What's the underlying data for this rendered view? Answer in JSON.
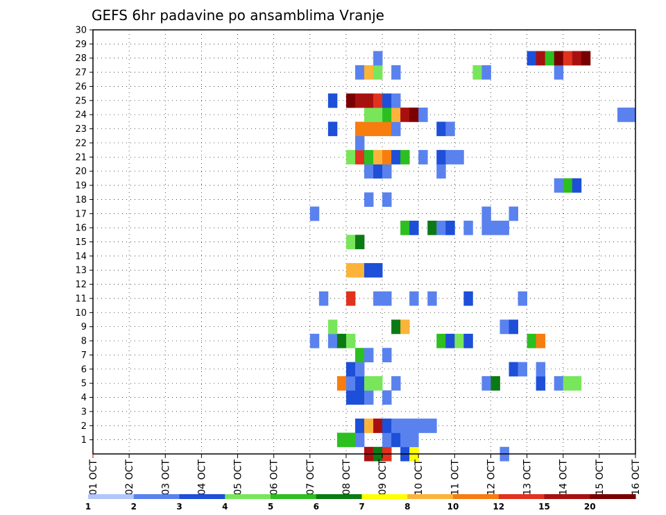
{
  "chart_data": {
    "type": "heatmap",
    "title": "GEFS 6hr padavine po ansamblima Vranje",
    "xlabel": "",
    "ylabel": "",
    "x_ticks": [
      "01 OCT",
      "02 OCT",
      "03 OCT",
      "04 OCT",
      "05 OCT",
      "06 OCT",
      "07 OCT",
      "08 OCT",
      "09 OCT",
      "10 OCT",
      "11 OCT",
      "12 OCT",
      "13 OCT",
      "14 OCT",
      "15 OCT",
      "16 OCT"
    ],
    "y_ticks": [
      1,
      2,
      3,
      4,
      5,
      6,
      7,
      8,
      9,
      10,
      11,
      12,
      13,
      14,
      15,
      16,
      17,
      18,
      19,
      20,
      21,
      22,
      23,
      24,
      25,
      26,
      27,
      28,
      29,
      30
    ],
    "xlim_days": [
      1,
      16
    ],
    "ylim": [
      0,
      30
    ],
    "grid": true,
    "step_hours": 6,
    "legend_levels": [
      1,
      2,
      3,
      4,
      5,
      6,
      7,
      8,
      10,
      12,
      15,
      20
    ],
    "legend_colors": [
      "#b3c6fa",
      "#5a82ee",
      "#1d4fd8",
      "#78e65a",
      "#2dbf1f",
      "#0c7a14",
      "#ffff00",
      "#fcb33a",
      "#f77d0f",
      "#e0321e",
      "#a81010",
      "#7a0000"
    ],
    "legend_placement": "bottom",
    "cells": [
      {
        "member": 0,
        "start": 8.5,
        "cls": 10
      },
      {
        "member": 0,
        "start": 8.75,
        "cls": 5
      },
      {
        "member": 0,
        "start": 9.0,
        "cls": 9
      },
      {
        "member": 0,
        "start": 9.5,
        "cls": 2
      },
      {
        "member": 0,
        "start": 9.75,
        "cls": 6
      },
      {
        "member": 0,
        "start": 12.25,
        "cls": 1
      },
      {
        "member": 1,
        "start": 7.75,
        "cls": 4
      },
      {
        "member": 1,
        "start": 8.0,
        "cls": 4
      },
      {
        "member": 1,
        "start": 8.25,
        "cls": 1
      },
      {
        "member": 1,
        "start": 9.0,
        "cls": 1
      },
      {
        "member": 1,
        "start": 9.25,
        "cls": 2
      },
      {
        "member": 1,
        "start": 9.5,
        "cls": 1
      },
      {
        "member": 1,
        "start": 9.75,
        "cls": 1
      },
      {
        "member": 2,
        "start": 8.25,
        "cls": 2
      },
      {
        "member": 2,
        "start": 8.5,
        "cls": 7
      },
      {
        "member": 2,
        "start": 8.75,
        "cls": 10
      },
      {
        "member": 2,
        "start": 9.0,
        "cls": 2
      },
      {
        "member": 2,
        "start": 9.25,
        "cls": 1
      },
      {
        "member": 2,
        "start": 9.5,
        "cls": 1
      },
      {
        "member": 2,
        "start": 9.75,
        "cls": 1
      },
      {
        "member": 2,
        "start": 10.0,
        "cls": 1
      },
      {
        "member": 2,
        "start": 10.25,
        "cls": 1
      },
      {
        "member": 4,
        "start": 8.0,
        "cls": 2
      },
      {
        "member": 4,
        "start": 8.25,
        "cls": 2
      },
      {
        "member": 4,
        "start": 8.5,
        "cls": 1
      },
      {
        "member": 4,
        "start": 9.0,
        "cls": 1
      },
      {
        "member": 5,
        "start": 7.75,
        "cls": 8
      },
      {
        "member": 5,
        "start": 8.0,
        "cls": 1
      },
      {
        "member": 5,
        "start": 8.25,
        "cls": 2
      },
      {
        "member": 5,
        "start": 8.5,
        "cls": 3
      },
      {
        "member": 5,
        "start": 8.75,
        "cls": 3
      },
      {
        "member": 5,
        "start": 9.25,
        "cls": 1
      },
      {
        "member": 5,
        "start": 11.75,
        "cls": 1
      },
      {
        "member": 5,
        "start": 12.0,
        "cls": 5
      },
      {
        "member": 5,
        "start": 13.25,
        "cls": 2
      },
      {
        "member": 5,
        "start": 13.75,
        "cls": 1
      },
      {
        "member": 5,
        "start": 14.0,
        "cls": 3
      },
      {
        "member": 5,
        "start": 14.25,
        "cls": 3
      },
      {
        "member": 6,
        "start": 8.0,
        "cls": 2
      },
      {
        "member": 6,
        "start": 8.25,
        "cls": 1
      },
      {
        "member": 6,
        "start": 12.5,
        "cls": 2
      },
      {
        "member": 6,
        "start": 12.75,
        "cls": 1
      },
      {
        "member": 6,
        "start": 13.25,
        "cls": 1
      },
      {
        "member": 7,
        "start": 8.25,
        "cls": 4
      },
      {
        "member": 7,
        "start": 8.5,
        "cls": 1
      },
      {
        "member": 7,
        "start": 9.0,
        "cls": 1
      },
      {
        "member": 8,
        "start": 7.0,
        "cls": 1
      },
      {
        "member": 8,
        "start": 7.5,
        "cls": 1
      },
      {
        "member": 8,
        "start": 7.75,
        "cls": 5
      },
      {
        "member": 8,
        "start": 8.0,
        "cls": 3
      },
      {
        "member": 8,
        "start": 10.5,
        "cls": 4
      },
      {
        "member": 8,
        "start": 10.75,
        "cls": 2
      },
      {
        "member": 8,
        "start": 11.0,
        "cls": 3
      },
      {
        "member": 8,
        "start": 11.25,
        "cls": 2
      },
      {
        "member": 8,
        "start": 13.0,
        "cls": 4
      },
      {
        "member": 8,
        "start": 13.25,
        "cls": 8
      },
      {
        "member": 9,
        "start": 7.5,
        "cls": 3
      },
      {
        "member": 9,
        "start": 9.25,
        "cls": 5
      },
      {
        "member": 9,
        "start": 9.5,
        "cls": 7
      },
      {
        "member": 9,
        "start": 12.25,
        "cls": 1
      },
      {
        "member": 9,
        "start": 12.5,
        "cls": 2
      },
      {
        "member": 11,
        "start": 7.25,
        "cls": 1
      },
      {
        "member": 11,
        "start": 8.0,
        "cls": 9
      },
      {
        "member": 11,
        "start": 8.75,
        "cls": 1
      },
      {
        "member": 11,
        "start": 9.0,
        "cls": 1
      },
      {
        "member": 11,
        "start": 9.75,
        "cls": 1
      },
      {
        "member": 11,
        "start": 10.25,
        "cls": 1
      },
      {
        "member": 11,
        "start": 11.25,
        "cls": 2
      },
      {
        "member": 11,
        "start": 12.75,
        "cls": 1
      },
      {
        "member": 13,
        "start": 8.0,
        "cls": 7
      },
      {
        "member": 13,
        "start": 8.25,
        "cls": 7
      },
      {
        "member": 13,
        "start": 8.5,
        "cls": 2
      },
      {
        "member": 13,
        "start": 8.75,
        "cls": 2
      },
      {
        "member": 15,
        "start": 8.0,
        "cls": 3
      },
      {
        "member": 15,
        "start": 8.25,
        "cls": 5
      },
      {
        "member": 16,
        "start": 9.5,
        "cls": 4
      },
      {
        "member": 16,
        "start": 9.75,
        "cls": 2
      },
      {
        "member": 16,
        "start": 10.25,
        "cls": 5
      },
      {
        "member": 16,
        "start": 10.5,
        "cls": 1
      },
      {
        "member": 16,
        "start": 10.75,
        "cls": 2
      },
      {
        "member": 16,
        "start": 11.25,
        "cls": 1
      },
      {
        "member": 16,
        "start": 11.75,
        "cls": 1
      },
      {
        "member": 16,
        "start": 12.0,
        "cls": 1
      },
      {
        "member": 16,
        "start": 12.25,
        "cls": 1
      },
      {
        "member": 17,
        "start": 7.0,
        "cls": 1
      },
      {
        "member": 17,
        "start": 11.75,
        "cls": 1
      },
      {
        "member": 17,
        "start": 12.5,
        "cls": 1
      },
      {
        "member": 18,
        "start": 8.5,
        "cls": 1
      },
      {
        "member": 18,
        "start": 9.0,
        "cls": 1
      },
      {
        "member": 19,
        "start": 13.75,
        "cls": 1
      },
      {
        "member": 19,
        "start": 14.0,
        "cls": 4
      },
      {
        "member": 19,
        "start": 14.25,
        "cls": 2
      },
      {
        "member": 20,
        "start": 8.5,
        "cls": 1
      },
      {
        "member": 20,
        "start": 8.75,
        "cls": 2
      },
      {
        "member": 20,
        "start": 9.0,
        "cls": 1
      },
      {
        "member": 20,
        "start": 10.5,
        "cls": 1
      },
      {
        "member": 21,
        "start": 8.0,
        "cls": 3
      },
      {
        "member": 21,
        "start": 8.25,
        "cls": 9
      },
      {
        "member": 21,
        "start": 8.5,
        "cls": 4
      },
      {
        "member": 21,
        "start": 8.75,
        "cls": 7
      },
      {
        "member": 21,
        "start": 9.0,
        "cls": 8
      },
      {
        "member": 21,
        "start": 9.25,
        "cls": 2
      },
      {
        "member": 21,
        "start": 9.5,
        "cls": 4
      },
      {
        "member": 21,
        "start": 10.0,
        "cls": 1
      },
      {
        "member": 21,
        "start": 10.5,
        "cls": 2
      },
      {
        "member": 21,
        "start": 10.75,
        "cls": 1
      },
      {
        "member": 21,
        "start": 11.0,
        "cls": 1
      },
      {
        "member": 22,
        "start": 8.25,
        "cls": 1
      },
      {
        "member": 23,
        "start": 7.5,
        "cls": 2
      },
      {
        "member": 23,
        "start": 8.25,
        "cls": 8
      },
      {
        "member": 23,
        "start": 8.5,
        "cls": 8
      },
      {
        "member": 23,
        "start": 8.75,
        "cls": 8
      },
      {
        "member": 23,
        "start": 9.0,
        "cls": 8
      },
      {
        "member": 23,
        "start": 9.25,
        "cls": 1
      },
      {
        "member": 23,
        "start": 10.5,
        "cls": 2
      },
      {
        "member": 23,
        "start": 10.75,
        "cls": 1
      },
      {
        "member": 24,
        "start": 8.5,
        "cls": 3
      },
      {
        "member": 24,
        "start": 8.75,
        "cls": 3
      },
      {
        "member": 24,
        "start": 9.0,
        "cls": 4
      },
      {
        "member": 24,
        "start": 9.25,
        "cls": 7
      },
      {
        "member": 24,
        "start": 9.5,
        "cls": 10
      },
      {
        "member": 24,
        "start": 9.75,
        "cls": 11
      },
      {
        "member": 24,
        "start": 10.0,
        "cls": 1
      },
      {
        "member": 24,
        "start": 15.5,
        "cls": 1
      },
      {
        "member": 24,
        "start": 15.75,
        "cls": 1
      },
      {
        "member": 25,
        "start": 7.5,
        "cls": 2
      },
      {
        "member": 25,
        "start": 8.0,
        "cls": 11
      },
      {
        "member": 25,
        "start": 8.25,
        "cls": 10
      },
      {
        "member": 25,
        "start": 8.5,
        "cls": 10
      },
      {
        "member": 25,
        "start": 8.75,
        "cls": 9
      },
      {
        "member": 25,
        "start": 9.0,
        "cls": 2
      },
      {
        "member": 25,
        "start": 9.25,
        "cls": 1
      },
      {
        "member": 27,
        "start": 8.25,
        "cls": 1
      },
      {
        "member": 27,
        "start": 8.5,
        "cls": 7
      },
      {
        "member": 27,
        "start": 8.75,
        "cls": 3
      },
      {
        "member": 27,
        "start": 9.25,
        "cls": 1
      },
      {
        "member": 27,
        "start": 11.5,
        "cls": 3
      },
      {
        "member": 27,
        "start": 11.75,
        "cls": 1
      },
      {
        "member": 27,
        "start": 13.75,
        "cls": 1
      },
      {
        "member": 28,
        "start": 8.75,
        "cls": 1
      },
      {
        "member": 28,
        "start": 13.0,
        "cls": 2
      },
      {
        "member": 28,
        "start": 13.25,
        "cls": 10
      },
      {
        "member": 28,
        "start": 13.5,
        "cls": 4
      },
      {
        "member": 28,
        "start": 13.75,
        "cls": 11
      },
      {
        "member": 28,
        "start": 14.0,
        "cls": 9
      },
      {
        "member": 28,
        "start": 14.25,
        "cls": 10
      },
      {
        "member": 28,
        "start": 14.5,
        "cls": 11
      }
    ]
  }
}
